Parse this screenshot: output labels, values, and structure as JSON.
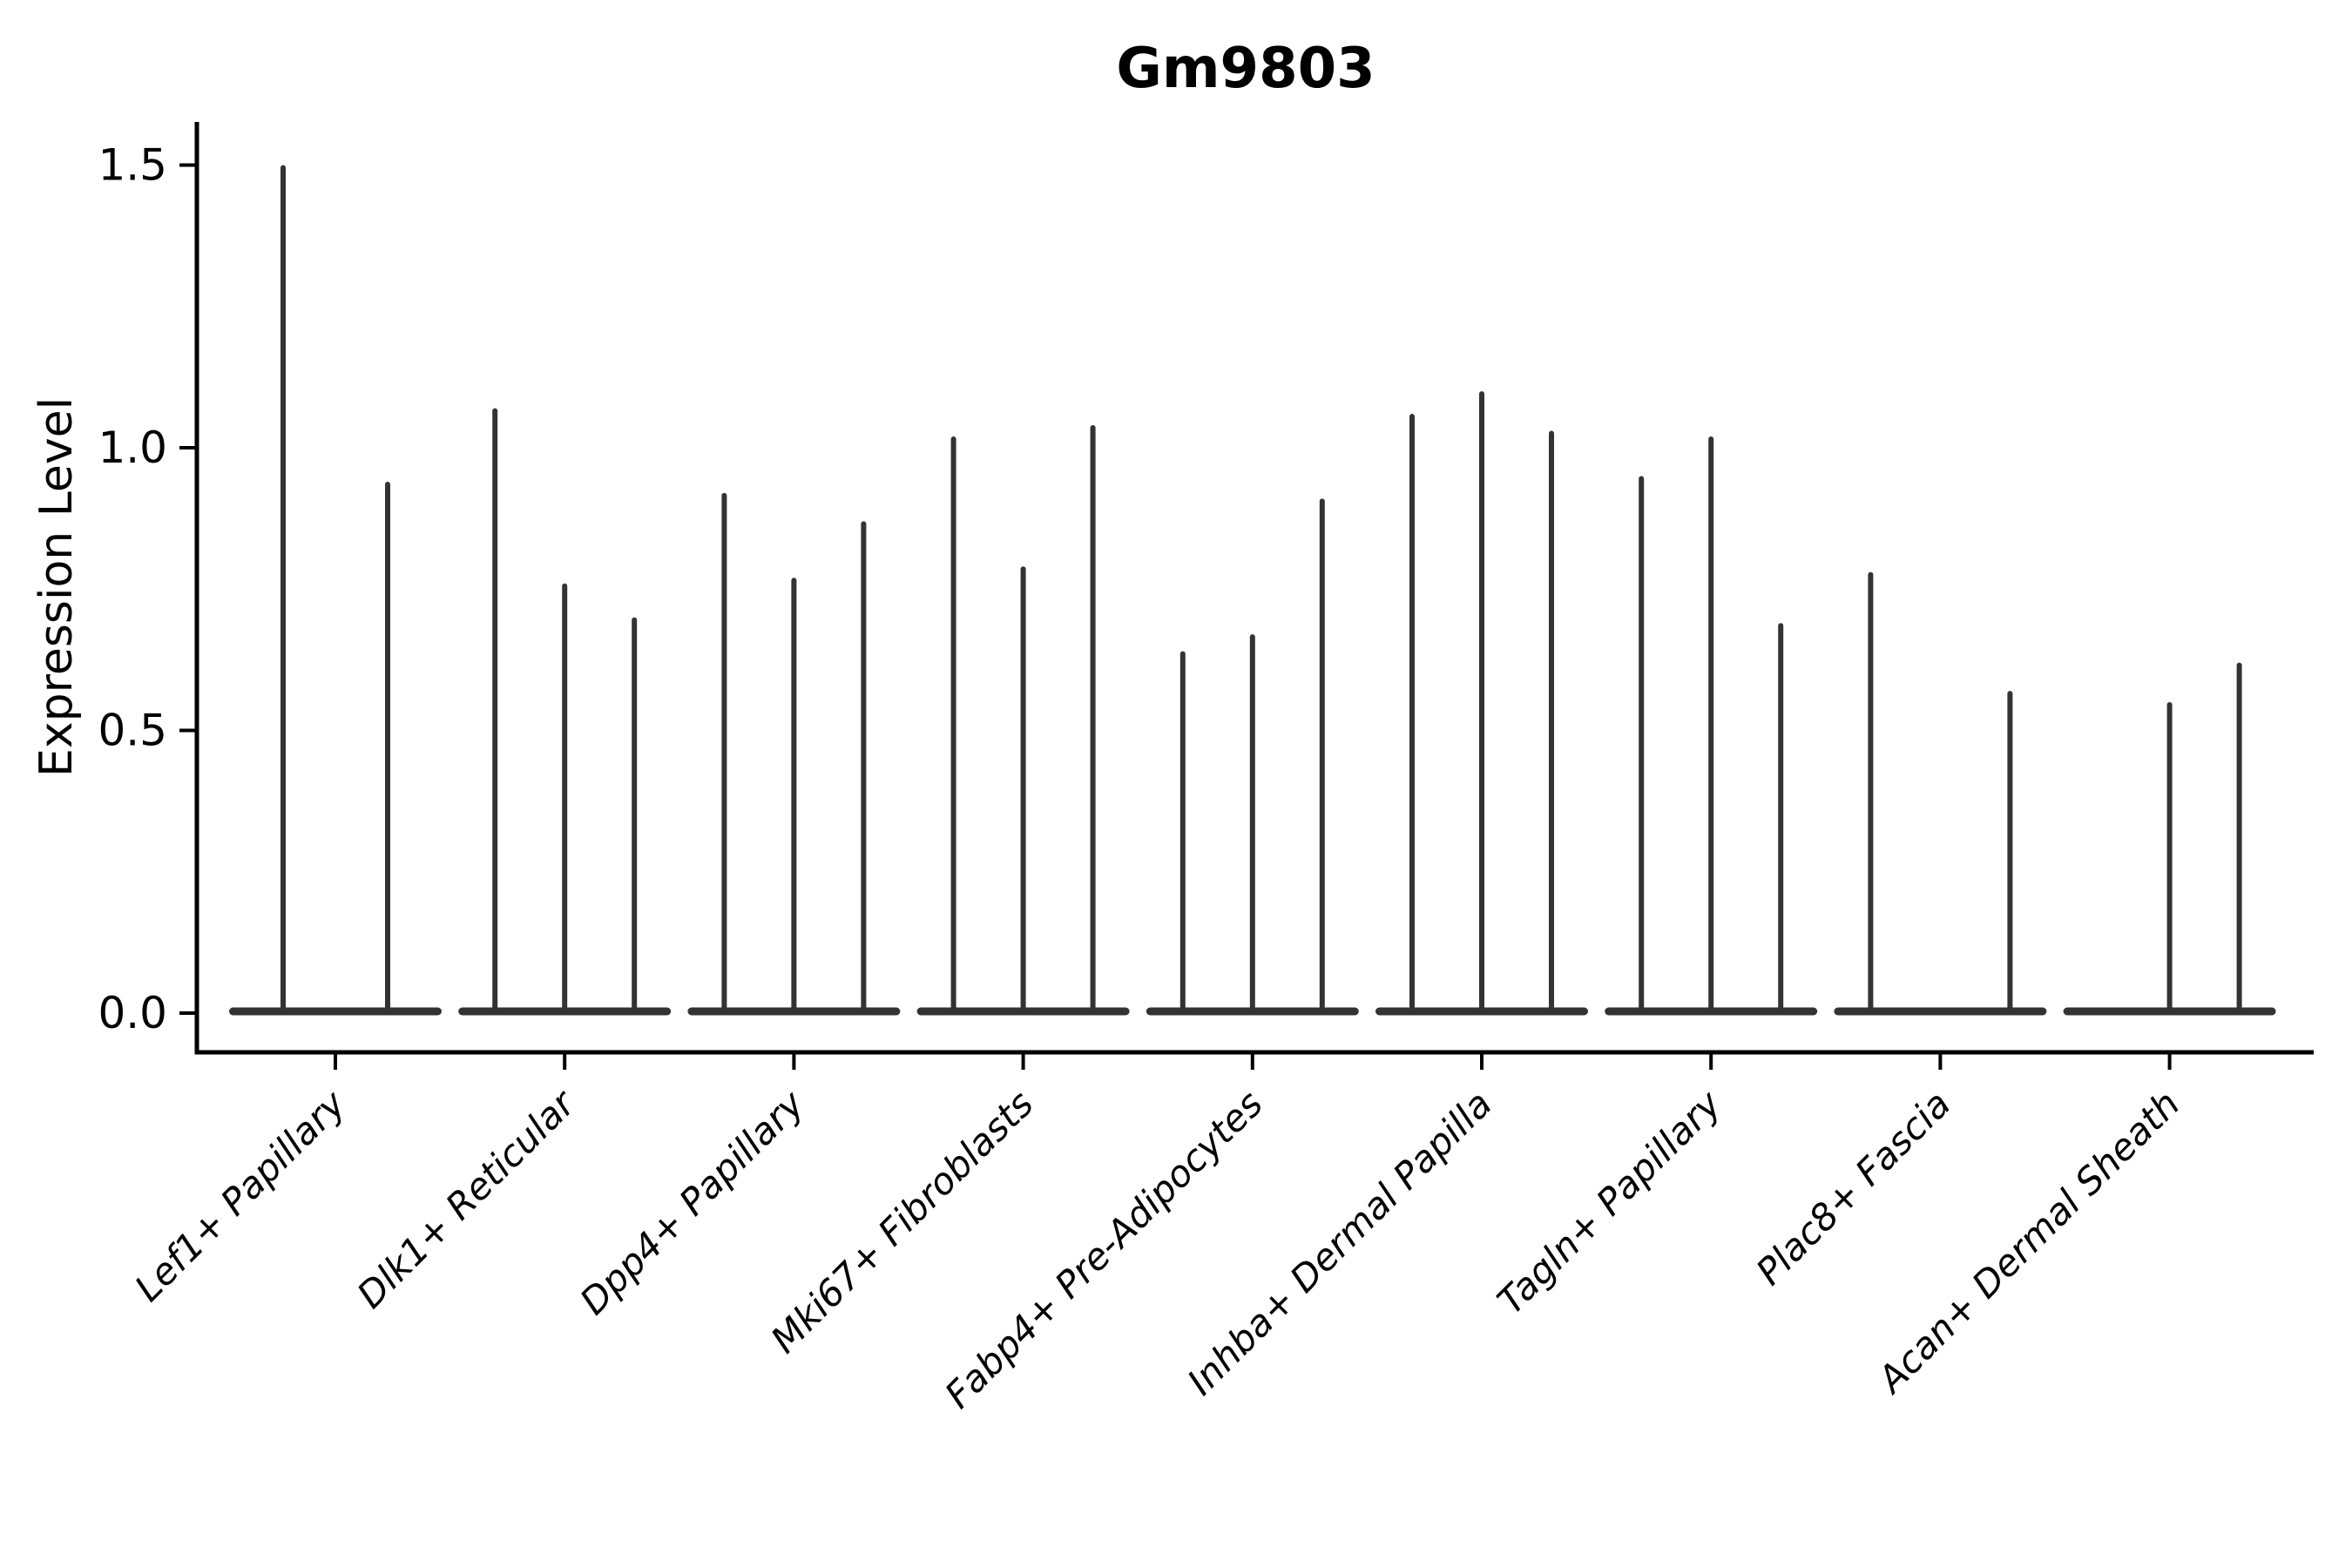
{
  "chart_data": {
    "type": "violin",
    "title": "Gm9803",
    "xlabel": "",
    "ylabel": "Expression Level",
    "ylim": [
      -0.07,
      1.58
    ],
    "yticks": [
      0.0,
      0.5,
      1.0,
      1.5
    ],
    "ytick_labels": [
      "0.0",
      "0.5",
      "1.0",
      "1.5"
    ],
    "grid": false,
    "legend": "none",
    "x_label_rotation_deg": 45,
    "x_label_style": "italic",
    "colors": {
      "violin": "#333333",
      "axis": "#000000",
      "text": "#000000",
      "background": "#ffffff"
    },
    "categories": [
      "Lef1+ Papillary",
      "Dlk1+ Reticular",
      "Dpp4+ Papillary",
      "Mki67+ Fibroblasts",
      "Fabp4+ Pre-Adipocytes",
      "Inhba+ Dermal Papilla",
      "Tagln+ Papillary",
      "Plac8+ Fascia",
      "Acan+ Dermal Sheath"
    ],
    "groups": [
      {
        "category": "Lef1+ Papillary",
        "violin_peaks": [
          1.5,
          0.94
        ]
      },
      {
        "category": "Dlk1+ Reticular",
        "violin_peaks": [
          1.07,
          0.76,
          0.7
        ]
      },
      {
        "category": "Dpp4+ Papillary",
        "violin_peaks": [
          0.92,
          0.77,
          0.87
        ]
      },
      {
        "category": "Mki67+ Fibroblasts",
        "violin_peaks": [
          1.02,
          0.79,
          1.04
        ]
      },
      {
        "category": "Fabp4+ Pre-Adipocytes",
        "violin_peaks": [
          0.64,
          0.67,
          0.91
        ]
      },
      {
        "category": "Inhba+ Dermal Papilla",
        "violin_peaks": [
          1.06,
          1.1,
          1.03
        ]
      },
      {
        "category": "Tagln+ Papillary",
        "violin_peaks": [
          0.95,
          1.02,
          0.69
        ]
      },
      {
        "category": "Plac8+ Fascia",
        "violin_peaks": [
          0.78,
          0.0,
          0.57
        ]
      },
      {
        "category": "Acan+ Dermal Sheath",
        "violin_peaks": [
          0.0,
          0.55,
          0.62
        ]
      }
    ]
  }
}
